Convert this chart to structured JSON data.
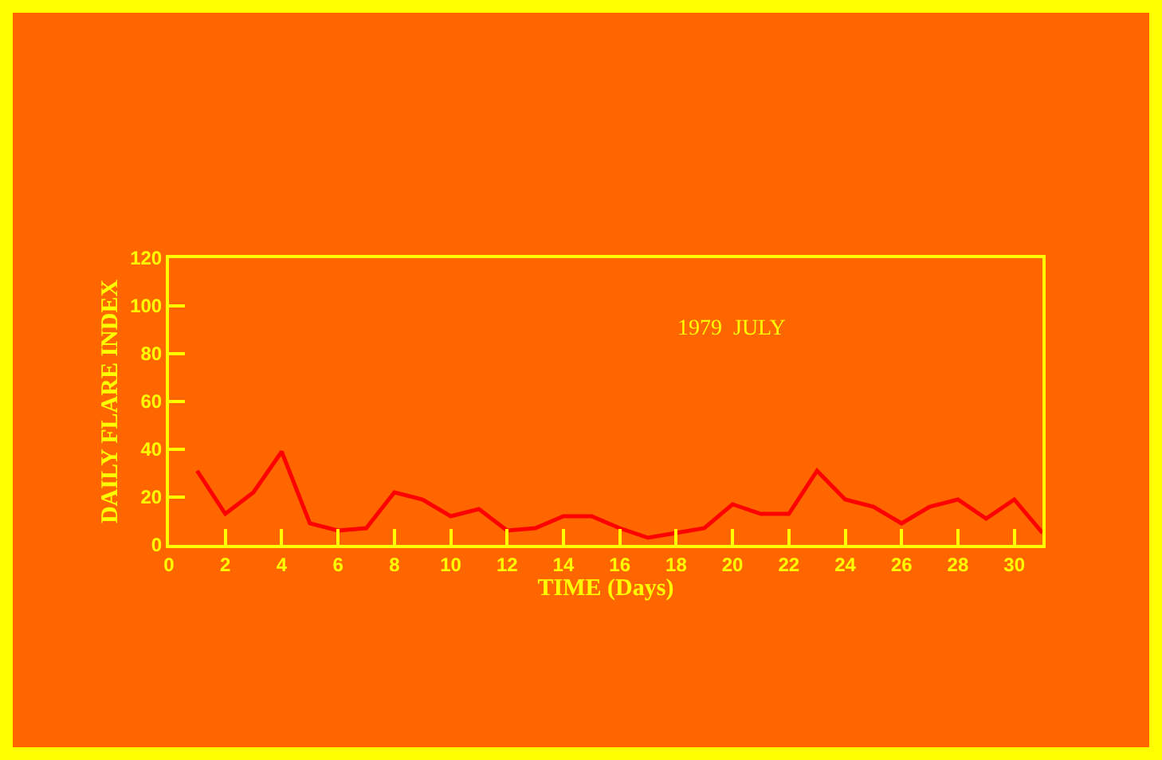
{
  "chart_data": {
    "type": "line",
    "xlabel": "TIME (Days)",
    "ylabel": "DAILY FLARE INDEX",
    "annotations": [
      "1979  JULY"
    ],
    "x": [
      1,
      2,
      3,
      4,
      5,
      6,
      7,
      8,
      9,
      10,
      11,
      12,
      13,
      14,
      15,
      16,
      17,
      18,
      19,
      20,
      21,
      22,
      23,
      24,
      25,
      26,
      27,
      28,
      29,
      30,
      31
    ],
    "series": [
      {
        "color": "#ff0000",
        "values": [
          31,
          13,
          22,
          39,
          9,
          6,
          7,
          22,
          19,
          12,
          15,
          6,
          7,
          12,
          12,
          7,
          3,
          5,
          7,
          17,
          13,
          13,
          31,
          19,
          16,
          9,
          16,
          19,
          11,
          19,
          5
        ]
      }
    ],
    "xlim": [
      0,
      31
    ],
    "xticks": [
      0,
      2,
      4,
      6,
      8,
      10,
      12,
      14,
      16,
      18,
      20,
      22,
      24,
      26,
      28,
      30
    ],
    "ylim": [
      0,
      120
    ],
    "yticks": [
      0,
      20,
      40,
      60,
      80,
      100,
      120
    ],
    "grid": false,
    "marker": "none",
    "line_style": "solid"
  }
}
